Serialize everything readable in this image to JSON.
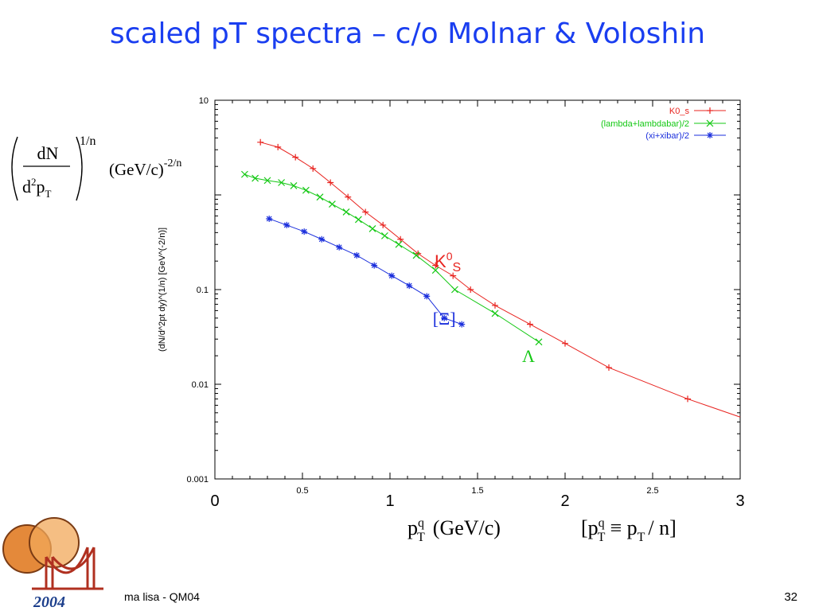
{
  "slide": {
    "title": "scaled pT spectra – c/o Molnar & Voloshin",
    "footer": "ma lisa - QM04",
    "page_number": "32",
    "logo_year": "2004"
  },
  "formula": {
    "y_prefix_num": "dN",
    "y_prefix_den_d": "d",
    "y_prefix_den_exp": "2",
    "y_prefix_den_p": "p",
    "y_prefix_den_sub": "T",
    "y_prefix_power": "1/n",
    "y_unit": "(GeV/c)",
    "y_unit_power": "-2/n",
    "x_main_p": "p",
    "x_main_sup": "q",
    "x_main_sub": "T",
    "x_main_unit": "(GeV/c)",
    "x_def_open": "[p",
    "x_def_sup": "q",
    "x_def_sub": "T",
    "x_def_mid": "≡ p",
    "x_def_sub2": "T",
    "x_def_end": "/ n]"
  },
  "chart_data": {
    "type": "line",
    "yscale": "log",
    "xlim": [
      0,
      3
    ],
    "ylim": [
      0.001,
      10
    ],
    "ylabel": "(dN/d^2pt dy)^(1/n)   [GeV^(-2/n)]",
    "xlabel": "",
    "x_ticks_small": [
      "0.5",
      "1.5",
      "2.5"
    ],
    "x_ticks_big": [
      "0",
      "1",
      "2",
      "3"
    ],
    "y_ticks": [
      "10",
      "0.1",
      "0.01",
      "0.001"
    ],
    "legend_position": "top-right",
    "series": [
      {
        "name": "K0_s",
        "color": "#e8231f",
        "marker": "plus",
        "x": [
          0.26,
          0.36,
          0.46,
          0.56,
          0.66,
          0.76,
          0.86,
          0.96,
          1.06,
          1.16,
          1.26,
          1.36,
          1.46,
          1.6,
          1.8,
          2.0,
          2.25,
          2.7
        ],
        "y": [
          3.6,
          3.2,
          2.5,
          1.9,
          1.35,
          0.95,
          0.66,
          0.48,
          0.34,
          0.24,
          0.18,
          0.14,
          0.1,
          0.068,
          0.043,
          0.027,
          0.015,
          0.007
        ],
        "line_extend": {
          "x": 3.0,
          "y": 0.0045
        }
      },
      {
        "name": "(lambda+lambdabar)/2",
        "color": "#14c814",
        "marker": "x",
        "x": [
          0.17,
          0.23,
          0.3,
          0.38,
          0.45,
          0.52,
          0.6,
          0.67,
          0.75,
          0.82,
          0.9,
          0.97,
          1.05,
          1.15,
          1.26,
          1.37,
          1.6,
          1.85
        ],
        "y": [
          1.65,
          1.5,
          1.42,
          1.35,
          1.25,
          1.12,
          0.95,
          0.8,
          0.66,
          0.55,
          0.44,
          0.37,
          0.3,
          0.23,
          0.16,
          0.1,
          0.056,
          0.028
        ]
      },
      {
        "name": "(xi+xibar)/2",
        "color": "#1a2edc",
        "marker": "star",
        "x": [
          0.31,
          0.41,
          0.51,
          0.61,
          0.71,
          0.81,
          0.91,
          1.01,
          1.11,
          1.21,
          1.31,
          1.41
        ],
        "y": [
          0.56,
          0.48,
          0.41,
          0.34,
          0.28,
          0.23,
          0.18,
          0.14,
          0.11,
          0.085,
          0.05,
          0.043
        ]
      }
    ],
    "annotations": [
      {
        "text": "K",
        "sup": "0",
        "sub": "S",
        "color": "#e8231f",
        "x": 1.2,
        "y": 0.2
      },
      {
        "text": "Λ",
        "color": "#14c814",
        "x": 1.7,
        "y": 0.02
      },
      {
        "text": "[Ξ]",
        "color": "#1a2edc",
        "x": 1.19,
        "y": 0.05
      }
    ]
  }
}
